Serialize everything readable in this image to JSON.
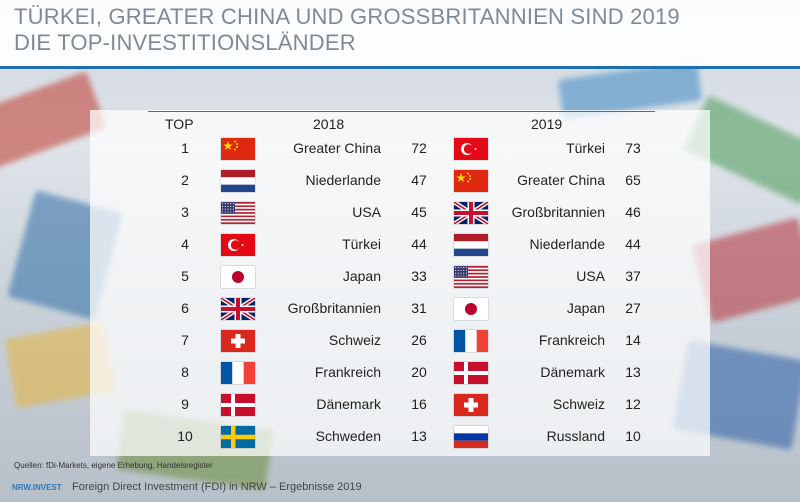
{
  "title_line1": "TÜRKEI, GREATER CHINA UND GROSSBRITANNIEN SIND 2019",
  "title_line2": "DIE TOP-INVESTITIONSLÄNDER",
  "headers": {
    "rank": "TOP",
    "y2018": "2018",
    "y2019": "2019"
  },
  "rows": [
    {
      "rank": "1",
      "c18": "Greater China",
      "f18": "china-flag-icon",
      "v18": "72",
      "c19": "Türkei",
      "f19": "turkey-flag-icon",
      "v19": "73"
    },
    {
      "rank": "2",
      "c18": "Niederlande",
      "f18": "netherlands-flag-icon",
      "v18": "47",
      "c19": "Greater China",
      "f19": "china-flag-icon",
      "v19": "65"
    },
    {
      "rank": "3",
      "c18": "USA",
      "f18": "usa-flag-icon",
      "v18": "45",
      "c19": "Großbritannien",
      "f19": "uk-flag-icon",
      "v19": "46"
    },
    {
      "rank": "4",
      "c18": "Türkei",
      "f18": "turkey-flag-icon",
      "v18": "44",
      "c19": "Niederlande",
      "f19": "netherlands-flag-icon",
      "v19": "44"
    },
    {
      "rank": "5",
      "c18": "Japan",
      "f18": "japan-flag-icon",
      "v18": "33",
      "c19": "USA",
      "f19": "usa-flag-icon",
      "v19": "37"
    },
    {
      "rank": "6",
      "c18": "Großbritannien",
      "f18": "uk-flag-icon",
      "v18": "31",
      "c19": "Japan",
      "f19": "japan-flag-icon",
      "v19": "27"
    },
    {
      "rank": "7",
      "c18": "Schweiz",
      "f18": "switzerland-flag-icon",
      "v18": "26",
      "c19": "Frankreich",
      "f19": "france-flag-icon",
      "v19": "14"
    },
    {
      "rank": "8",
      "c18": "Frankreich",
      "f18": "france-flag-icon",
      "v18": "20",
      "c19": "Dänemark",
      "f19": "denmark-flag-icon",
      "v19": "13"
    },
    {
      "rank": "9",
      "c18": "Dänemark",
      "f18": "denmark-flag-icon",
      "v18": "16",
      "c19": "Schweiz",
      "f19": "switzerland-flag-icon",
      "v19": "12"
    },
    {
      "rank": "10",
      "c18": "Schweden",
      "f18": "sweden-flag-icon",
      "v18": "13",
      "c19": "Russland",
      "f19": "russia-flag-icon",
      "v19": "10"
    }
  ],
  "footer": {
    "source": "Quellen: fDi-Markets, eigene Erhebung, Handelsregister",
    "caption": "Foreign Direct Investment (FDI) in NRW – Ergebnisse 2019",
    "logo": "NRW.INVEST"
  },
  "colors": {
    "accent": "#1f6fb0",
    "title": "#7f8a94"
  }
}
